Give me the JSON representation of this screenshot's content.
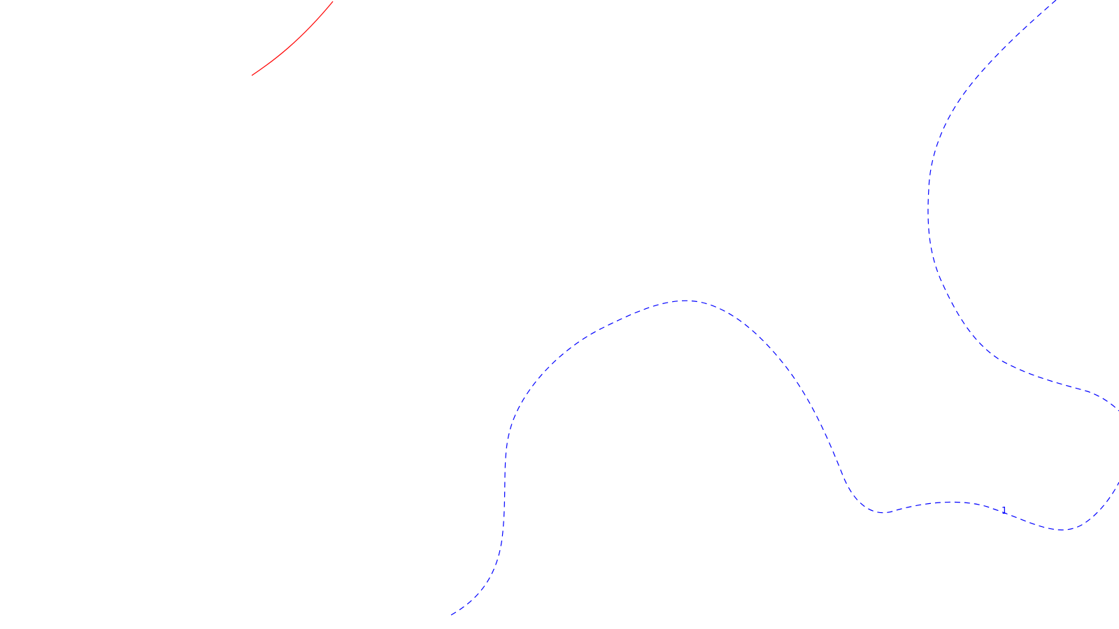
{
  "colors": {
    "background": "#ffffff",
    "red_curve": "#ff0000",
    "blue_curve": "#0000ff"
  },
  "curves": {
    "red": {
      "style": "solid"
    },
    "blue_left": {
      "style": "dashed"
    },
    "blue_right": {
      "style": "dashed",
      "label": "1"
    }
  }
}
